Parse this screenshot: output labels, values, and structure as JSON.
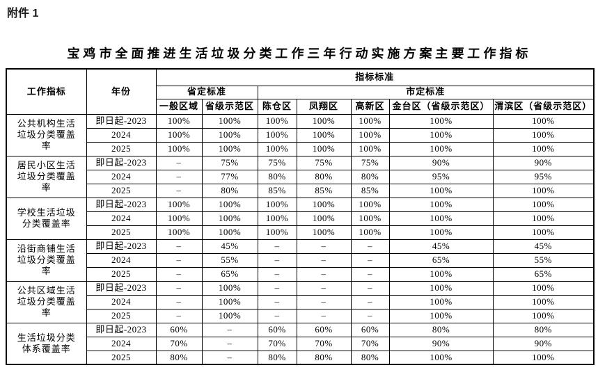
{
  "page": {
    "attachment_label": "附件 1",
    "table_title": "宝鸡市全面推进生活垃圾分类工作三年行动实施方案主要工作指标"
  },
  "table": {
    "header": {
      "indicator_label": "工作指标",
      "year_label": "年份",
      "standards_label": "指标标准",
      "province_label": "省定标准",
      "city_label": "市定标准",
      "region_columns": [
        "一般区域",
        "省级示范区",
        "陈仓区",
        "凤翔区",
        "高新区",
        "金台区（省级示范区）",
        "渭滨区（省级示范区）"
      ]
    },
    "groups": [
      {
        "indicator": "公共机构生活垃圾分类覆盖率",
        "rows": [
          {
            "year": "即日起-2023",
            "values": [
              "100%",
              "100%",
              "100%",
              "100%",
              "100%",
              "100%",
              "100%"
            ]
          },
          {
            "year": "2024",
            "values": [
              "100%",
              "100%",
              "100%",
              "100%",
              "100%",
              "100%",
              "100%"
            ]
          },
          {
            "year": "2025",
            "values": [
              "100%",
              "100%",
              "100%",
              "100%",
              "100%",
              "100%",
              "100%"
            ]
          }
        ]
      },
      {
        "indicator": "居民小区生活垃圾分类覆盖率",
        "rows": [
          {
            "year": "即日起-2023",
            "values": [
              "–",
              "75%",
              "75%",
              "75%",
              "75%",
              "90%",
              "90%"
            ]
          },
          {
            "year": "2024",
            "values": [
              "–",
              "77%",
              "80%",
              "80%",
              "80%",
              "95%",
              "95%"
            ]
          },
          {
            "year": "2025",
            "values": [
              "–",
              "80%",
              "85%",
              "85%",
              "85%",
              "100%",
              "100%"
            ]
          }
        ]
      },
      {
        "indicator": "学校生活垃圾分类覆盖率",
        "rows": [
          {
            "year": "即日起-2023",
            "values": [
              "100%",
              "100%",
              "100%",
              "100%",
              "100%",
              "100%",
              "100%"
            ]
          },
          {
            "year": "2024",
            "values": [
              "100%",
              "100%",
              "100%",
              "100%",
              "100%",
              "100%",
              "100%"
            ]
          },
          {
            "year": "2025",
            "values": [
              "100%",
              "100%",
              "100%",
              "100%",
              "100%",
              "100%",
              "100%"
            ]
          }
        ]
      },
      {
        "indicator": "沿街商铺生活垃圾分类覆盖率",
        "rows": [
          {
            "year": "即日起-2023",
            "values": [
              "–",
              "45%",
              "–",
              "–",
              "–",
              "45%",
              "45%"
            ]
          },
          {
            "year": "2024",
            "values": [
              "–",
              "55%",
              "–",
              "–",
              "–",
              "65%",
              "55%"
            ]
          },
          {
            "year": "2025",
            "values": [
              "–",
              "65%",
              "–",
              "–",
              "–",
              "100%",
              "65%"
            ]
          }
        ]
      },
      {
        "indicator": "公共区域生活垃圾分类覆盖率",
        "rows": [
          {
            "year": "即日起-2023",
            "values": [
              "–",
              "100%",
              "–",
              "–",
              "–",
              "100%",
              "100%"
            ]
          },
          {
            "year": "2024",
            "values": [
              "–",
              "100%",
              "–",
              "–",
              "–",
              "100%",
              "100%"
            ]
          },
          {
            "year": "2025",
            "values": [
              "–",
              "100%",
              "–",
              "–",
              "–",
              "100%",
              "100%"
            ]
          }
        ]
      },
      {
        "indicator": "生活垃圾分类体系覆盖率",
        "rows": [
          {
            "year": "即日起-2023",
            "values": [
              "60%",
              "–",
              "60%",
              "60%",
              "60%",
              "80%",
              "80%"
            ]
          },
          {
            "year": "2024",
            "values": [
              "70%",
              "–",
              "70%",
              "70%",
              "70%",
              "90%",
              "90%"
            ]
          },
          {
            "year": "2025",
            "values": [
              "80%",
              "–",
              "80%",
              "80%",
              "80%",
              "100%",
              "100%"
            ]
          }
        ]
      }
    ]
  }
}
